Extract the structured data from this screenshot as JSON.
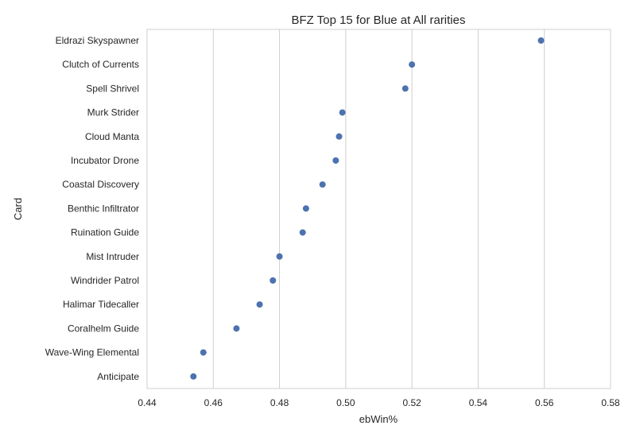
{
  "chart_data": {
    "type": "scatter",
    "title": "BFZ Top 15 for Blue at All rarities",
    "xlabel": "ebWin%",
    "ylabel": "Card",
    "xlim": [
      0.44,
      0.58
    ],
    "x_ticks": [
      "0.44",
      "0.46",
      "0.48",
      "0.50",
      "0.52",
      "0.54",
      "0.56",
      "0.58"
    ],
    "x_tick_values": [
      0.44,
      0.46,
      0.48,
      0.5,
      0.52,
      0.54,
      0.56,
      0.58
    ],
    "grid": "vertical",
    "point_color": "#4c72b0",
    "categories": [
      "Eldrazi Skyspawner",
      "Clutch of Currents",
      "Spell Shrivel",
      "Murk Strider",
      "Cloud Manta",
      "Incubator Drone",
      "Coastal Discovery",
      "Benthic Infiltrator",
      "Ruination Guide",
      "Mist Intruder",
      "Windrider Patrol",
      "Halimar Tidecaller",
      "Coralhelm Guide",
      "Wave-Wing Elemental",
      "Anticipate"
    ],
    "values": [
      0.559,
      0.52,
      0.518,
      0.499,
      0.498,
      0.497,
      0.493,
      0.488,
      0.487,
      0.48,
      0.478,
      0.474,
      0.467,
      0.457,
      0.454
    ]
  }
}
